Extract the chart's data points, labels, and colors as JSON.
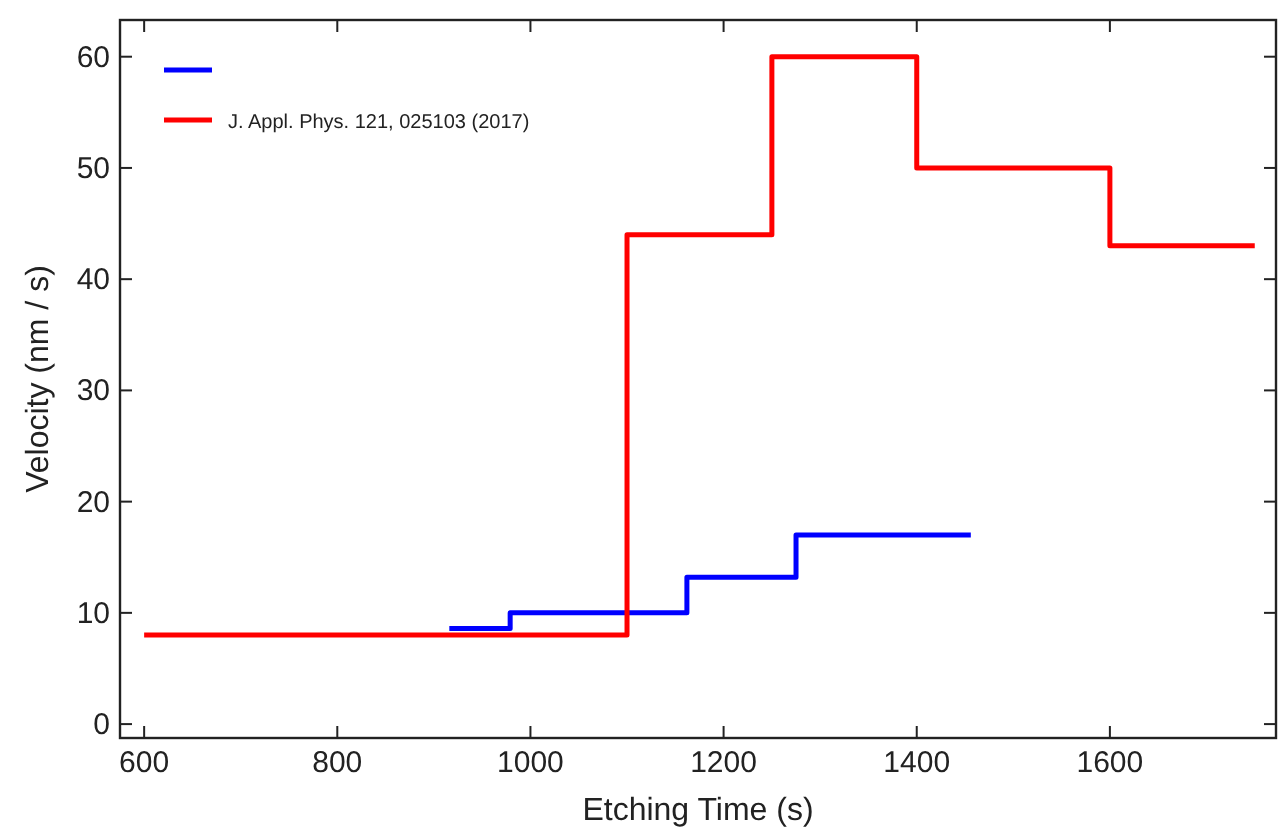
{
  "chart_data": {
    "type": "step",
    "xlabel": "Etching Time (s)",
    "ylabel": "Velocity (nm / s)",
    "xlim": [
      575,
      1772
    ],
    "xticks": [
      600,
      800,
      1000,
      1200,
      1400,
      1600
    ],
    "ylim": [
      -1.25,
      63.3
    ],
    "yticks": [
      0,
      10,
      20,
      30,
      40,
      50,
      60
    ],
    "grid": false,
    "legend": "top left",
    "line_style": "solid",
    "marker": "none",
    "series": [
      {
        "color": "#0000ff",
        "x": [
          916,
          979,
          1162,
          1275,
          1456
        ],
        "values": [
          8.6,
          10,
          13.2,
          17,
          17
        ]
      },
      {
        "name": "J. Appl. Phys. 121, 025103 (2017)",
        "color": "#ff0000",
        "x": [
          600,
          1100,
          1250,
          1400,
          1600,
          1750
        ],
        "values": [
          8,
          44,
          60,
          50,
          43,
          43
        ]
      }
    ]
  }
}
